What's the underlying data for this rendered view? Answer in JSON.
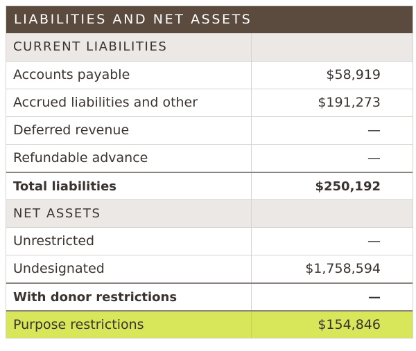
{
  "table": {
    "title": "LIABILITIES AND NET ASSETS",
    "rows": [
      {
        "label": "CURRENT LIABILITIES",
        "value": ""
      },
      {
        "label": "Accounts payable",
        "value": "$58,919"
      },
      {
        "label": "Accrued liabilities and other",
        "value": "$191,273"
      },
      {
        "label": "Deferred revenue",
        "value": "—"
      },
      {
        "label": "Refundable advance",
        "value": "—"
      },
      {
        "label": "Total liabilities",
        "value": "$250,192"
      },
      {
        "label": "NET ASSETS",
        "value": ""
      },
      {
        "label": "Unrestricted",
        "value": "—"
      },
      {
        "label": "Undesignated",
        "value": "$1,758,594"
      },
      {
        "label": "With donor restrictions",
        "value": "—"
      },
      {
        "label": "Purpose restrictions",
        "value": "$154,846"
      }
    ]
  },
  "colors": {
    "header_bg": "#5b4a3e",
    "section_bg": "#ebe8e6",
    "highlight_bg": "#d8e65a"
  }
}
